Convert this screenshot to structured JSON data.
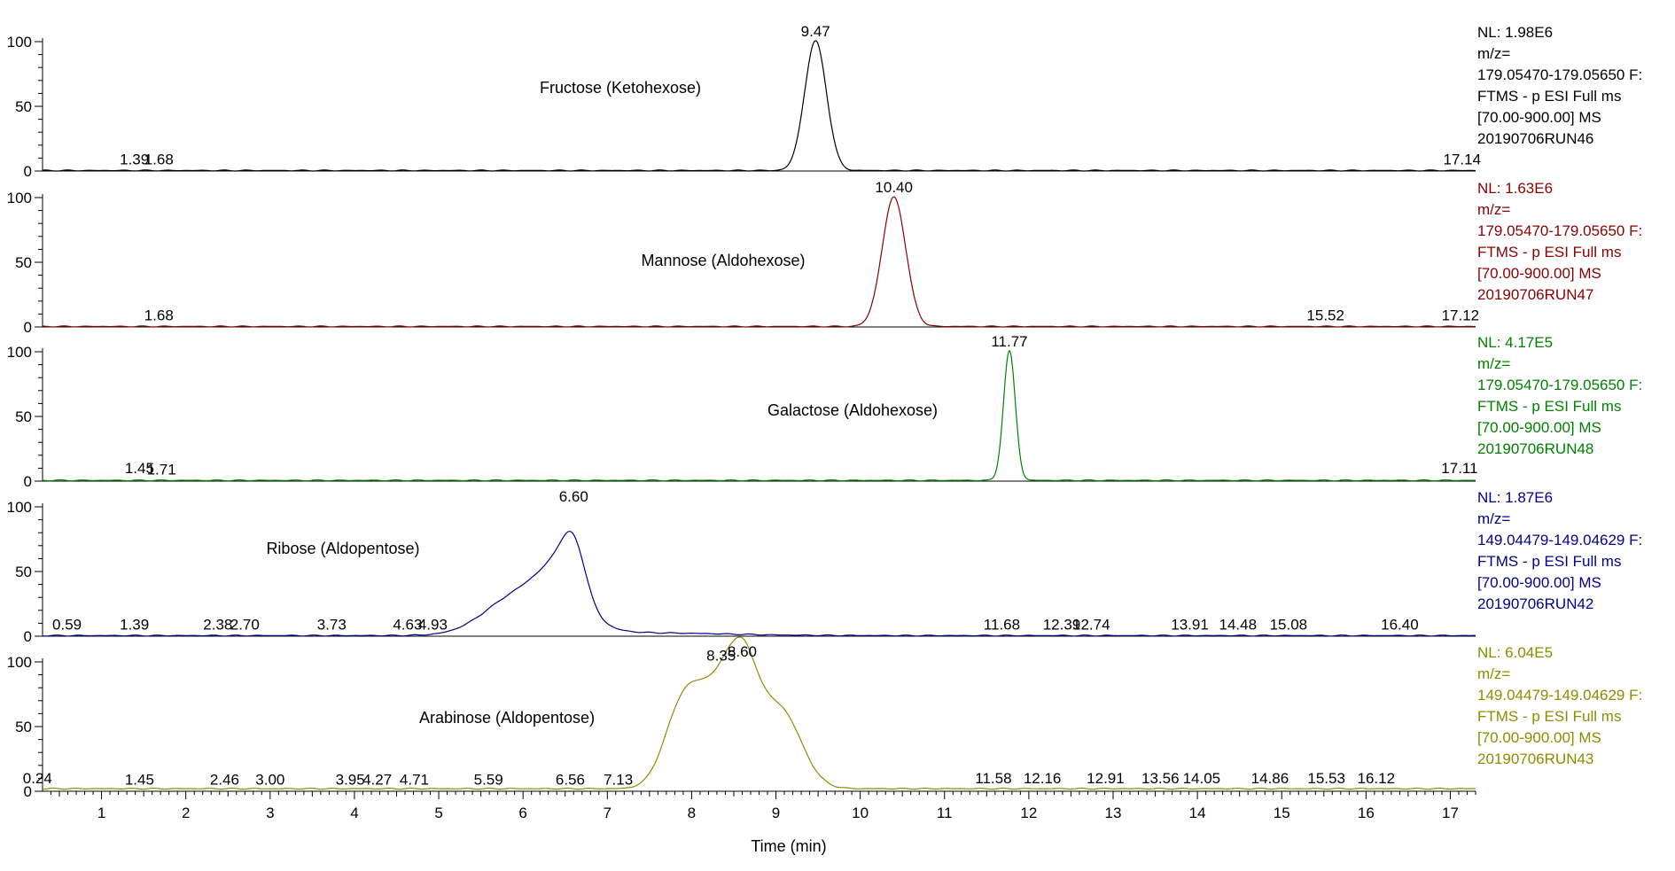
{
  "chart_data": {
    "type": "line",
    "xlabel": "Time (min)",
    "x_ticks": [
      1,
      2,
      3,
      4,
      5,
      6,
      7,
      8,
      9,
      10,
      11,
      12,
      13,
      14,
      15,
      16,
      17
    ],
    "xlim": [
      0.3,
      17.3
    ],
    "ylim": [
      0,
      100
    ],
    "y_ticks": [
      0,
      50,
      100
    ],
    "panels": [
      {
        "color": "#000000",
        "compound": "Fructose (Ketohexose)",
        "info": [
          "NL: 1.98E6",
          "m/z=",
          "179.05470-179.05650 F:",
          "FTMS - p ESI Full ms",
          "[70.00-900.00]  MS",
          "20190706RUN46"
        ],
        "peak_labels": [
          {
            "rt": 9.47,
            "text": "9.47",
            "y": 100
          },
          {
            "rt": 1.39,
            "text": "1.39",
            "y": 1
          },
          {
            "rt": 1.68,
            "text": "1.68",
            "y": 1
          },
          {
            "rt": 17.14,
            "text": "17.14",
            "y": 1
          }
        ],
        "peaks": [
          {
            "rt": 9.47,
            "height": 100,
            "width": 0.13
          }
        ],
        "baseline": 0.4
      },
      {
        "color": "#8b0000",
        "compound": "Mannose (Aldohexose)",
        "info": [
          "NL: 1.63E6",
          "m/z=",
          "179.05470-179.05650 F:",
          "FTMS - p ESI Full ms",
          "[70.00-900.00]  MS",
          "20190706RUN47"
        ],
        "peak_labels": [
          {
            "rt": 10.4,
            "text": "10.40",
            "y": 100
          },
          {
            "rt": 1.68,
            "text": "1.68",
            "y": 1
          },
          {
            "rt": 15.52,
            "text": "15.52",
            "y": 1
          },
          {
            "rt": 17.12,
            "text": "17.12",
            "y": 1
          }
        ],
        "peaks": [
          {
            "rt": 10.4,
            "height": 100,
            "width": 0.14
          }
        ],
        "baseline": 0.4
      },
      {
        "color": "#008000",
        "compound": "Galactose (Aldohexose)",
        "info": [
          "NL: 4.17E5",
          "m/z=",
          "179.05470-179.05650 F:",
          "FTMS - p ESI Full ms",
          "[70.00-900.00]  MS",
          "20190706RUN48"
        ],
        "peak_labels": [
          {
            "rt": 11.77,
            "text": "11.77",
            "y": 100
          },
          {
            "rt": 1.45,
            "text": "1.45",
            "y": 2
          },
          {
            "rt": 1.71,
            "text": "1.71",
            "y": 1
          },
          {
            "rt": 17.11,
            "text": "17.11",
            "y": 2
          }
        ],
        "peaks": [
          {
            "rt": 11.77,
            "height": 100,
            "width": 0.07
          }
        ],
        "baseline": 0.6
      },
      {
        "color": "#00008b",
        "compound": "Ribose (Aldopentose)",
        "info": [
          "NL: 1.87E6",
          "m/z=",
          "149.04479-149.04629 F:",
          "FTMS - p ESI Full ms",
          "[70.00-900.00]  MS",
          "20190706RUN42"
        ],
        "peak_labels": [
          {
            "rt": 6.6,
            "text": "6.60",
            "y": 100
          },
          {
            "rt": 0.59,
            "text": "0.59",
            "y": 1
          },
          {
            "rt": 1.39,
            "text": "1.39",
            "y": 1
          },
          {
            "rt": 2.38,
            "text": "2.38",
            "y": 1
          },
          {
            "rt": 2.7,
            "text": "2.70",
            "y": 1
          },
          {
            "rt": 3.73,
            "text": "3.73",
            "y": 1
          },
          {
            "rt": 4.63,
            "text": "4.63",
            "y": 1
          },
          {
            "rt": 4.93,
            "text": "4.93",
            "y": 1
          },
          {
            "rt": 11.68,
            "text": "11.68",
            "y": 1
          },
          {
            "rt": 12.39,
            "text": "12.39",
            "y": 1
          },
          {
            "rt": 12.74,
            "text": "12.74",
            "y": 1
          },
          {
            "rt": 13.91,
            "text": "13.91",
            "y": 1
          },
          {
            "rt": 14.48,
            "text": "14.48",
            "y": 1
          },
          {
            "rt": 15.08,
            "text": "15.08",
            "y": 1
          },
          {
            "rt": 16.4,
            "text": "16.40",
            "y": 1
          }
        ],
        "peaks": [
          {
            "rt": 6.6,
            "height": 35,
            "width": 0.14
          },
          {
            "rt": 6.45,
            "height": 30,
            "width": 0.25
          },
          {
            "rt": 6.15,
            "height": 26,
            "width": 0.45
          },
          {
            "rt": 5.8,
            "height": 10,
            "width": 0.35
          },
          {
            "rt": 7.5,
            "height": 2,
            "width": 0.9
          }
        ],
        "baseline": 0.5
      },
      {
        "color": "#8c8c00",
        "compound": "Arabinose (Aldopentose)",
        "info": [
          "NL: 6.04E5",
          "m/z=",
          "149.04479-149.04629 F:",
          "FTMS - p ESI Full ms",
          "[70.00-900.00]  MS",
          "20190706RUN43"
        ],
        "peak_labels": [
          {
            "rt": 8.35,
            "text": "8.35",
            "y": 97
          },
          {
            "rt": 8.6,
            "text": "8.60",
            "y": 100
          },
          {
            "rt": 0.24,
            "text": "0.24",
            "y": 2
          },
          {
            "rt": 1.45,
            "text": "1.45",
            "y": 1
          },
          {
            "rt": 2.46,
            "text": "2.46",
            "y": 1
          },
          {
            "rt": 3.0,
            "text": "3.00",
            "y": 1
          },
          {
            "rt": 3.95,
            "text": "3.95",
            "y": 1
          },
          {
            "rt": 4.27,
            "text": "4.27",
            "y": 1
          },
          {
            "rt": 4.71,
            "text": "4.71",
            "y": 1
          },
          {
            "rt": 5.59,
            "text": "5.59",
            "y": 1
          },
          {
            "rt": 6.56,
            "text": "6.56",
            "y": 1
          },
          {
            "rt": 7.13,
            "text": "7.13",
            "y": 1
          },
          {
            "rt": 11.58,
            "text": "11.58",
            "y": 2
          },
          {
            "rt": 12.16,
            "text": "12.16",
            "y": 2
          },
          {
            "rt": 12.91,
            "text": "12.91",
            "y": 2
          },
          {
            "rt": 13.56,
            "text": "13.56",
            "y": 2
          },
          {
            "rt": 14.05,
            "text": "14.05",
            "y": 2
          },
          {
            "rt": 14.86,
            "text": "14.86",
            "y": 2
          },
          {
            "rt": 15.53,
            "text": "15.53",
            "y": 2
          },
          {
            "rt": 16.12,
            "text": "16.12",
            "y": 2
          }
        ],
        "peaks": [
          {
            "rt": 7.9,
            "height": 62,
            "width": 0.22
          },
          {
            "rt": 8.35,
            "height": 70,
            "width": 0.25
          },
          {
            "rt": 8.62,
            "height": 62,
            "width": 0.18
          },
          {
            "rt": 9.05,
            "height": 60,
            "width": 0.25
          }
        ],
        "baseline": 2
      }
    ]
  }
}
